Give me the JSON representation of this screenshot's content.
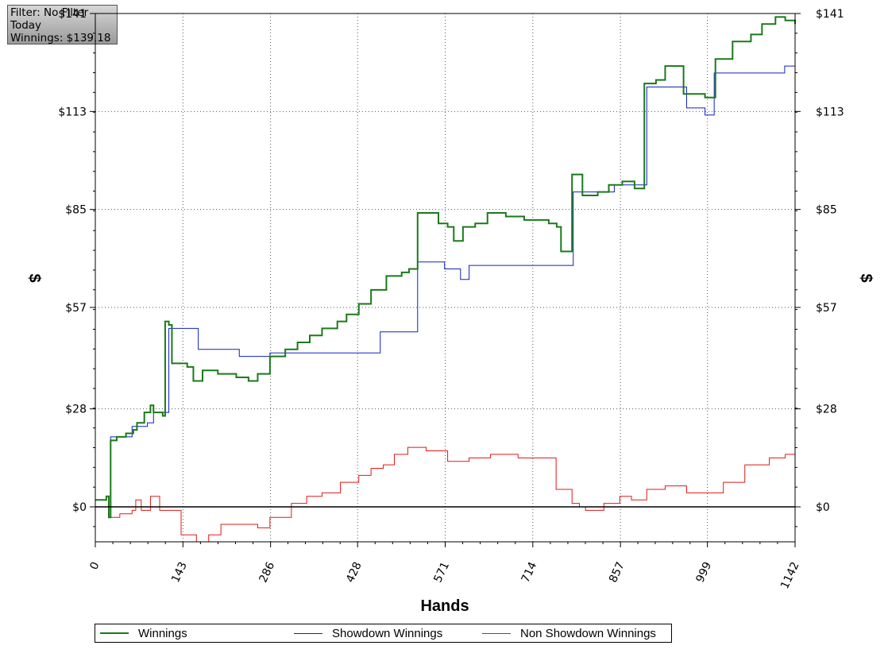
{
  "info_box": {
    "filter": "Filter: No Filter",
    "period": "Today",
    "winnings": "Winnings: $139.18"
  },
  "chart_data": {
    "type": "line",
    "xlabel": "Hands",
    "ylabel_left": "$",
    "ylabel_right": "$",
    "xlim": [
      0,
      1142
    ],
    "ylim": [
      -10,
      141
    ],
    "x_ticks": [
      "0",
      "143",
      "286",
      "428",
      "571",
      "714",
      "857",
      "999",
      "1142"
    ],
    "y_ticks": [
      {
        "value": 0,
        "label": "$0"
      },
      {
        "value": 28,
        "label": "$28"
      },
      {
        "value": 57,
        "label": "$57"
      },
      {
        "value": 85,
        "label": "$85"
      },
      {
        "value": 113,
        "label": "$113"
      },
      {
        "value": 141,
        "label": "$141"
      }
    ],
    "grid": true,
    "legend_position": "bottom",
    "series": [
      {
        "name": "Winnings",
        "color": "#1a7a1a",
        "width": 2,
        "points": [
          [
            0,
            2
          ],
          [
            12,
            2
          ],
          [
            18,
            3
          ],
          [
            22,
            -3
          ],
          [
            25,
            19
          ],
          [
            35,
            20
          ],
          [
            50,
            21
          ],
          [
            62,
            22
          ],
          [
            68,
            24
          ],
          [
            80,
            27
          ],
          [
            90,
            29
          ],
          [
            95,
            27
          ],
          [
            110,
            26
          ],
          [
            114,
            53
          ],
          [
            120,
            52
          ],
          [
            125,
            41
          ],
          [
            150,
            40
          ],
          [
            160,
            36
          ],
          [
            175,
            39
          ],
          [
            200,
            38
          ],
          [
            230,
            37
          ],
          [
            250,
            36
          ],
          [
            265,
            38
          ],
          [
            285,
            43
          ],
          [
            310,
            45
          ],
          [
            330,
            47
          ],
          [
            350,
            49
          ],
          [
            370,
            51
          ],
          [
            395,
            53
          ],
          [
            410,
            55
          ],
          [
            430,
            58
          ],
          [
            450,
            62
          ],
          [
            475,
            66
          ],
          [
            500,
            67
          ],
          [
            512,
            68
          ],
          [
            526,
            84
          ],
          [
            545,
            84
          ],
          [
            560,
            81
          ],
          [
            575,
            80
          ],
          [
            585,
            76
          ],
          [
            600,
            80
          ],
          [
            620,
            81
          ],
          [
            640,
            84
          ],
          [
            670,
            83
          ],
          [
            700,
            82
          ],
          [
            740,
            81
          ],
          [
            753,
            80
          ],
          [
            760,
            73
          ],
          [
            774,
            73
          ],
          [
            778,
            95
          ],
          [
            795,
            89
          ],
          [
            820,
            90
          ],
          [
            838,
            92
          ],
          [
            860,
            93
          ],
          [
            880,
            91
          ],
          [
            896,
            121
          ],
          [
            915,
            122
          ],
          [
            930,
            126
          ],
          [
            960,
            118
          ],
          [
            995,
            117
          ],
          [
            1001,
            117
          ],
          [
            1012,
            128
          ],
          [
            1040,
            133
          ],
          [
            1070,
            135
          ],
          [
            1088,
            138
          ],
          [
            1110,
            140
          ],
          [
            1126,
            139
          ],
          [
            1142,
            138
          ]
        ]
      },
      {
        "name": "Showdown Winnings",
        "color": "#1020c0",
        "width": 1,
        "points": [
          [
            0,
            0
          ],
          [
            25,
            0
          ],
          [
            25,
            20
          ],
          [
            55,
            20
          ],
          [
            60,
            23
          ],
          [
            85,
            24
          ],
          [
            95,
            27
          ],
          [
            110,
            27
          ],
          [
            120,
            51
          ],
          [
            168,
            51
          ],
          [
            168,
            45
          ],
          [
            235,
            45
          ],
          [
            235,
            43
          ],
          [
            285,
            43
          ],
          [
            285,
            44
          ],
          [
            465,
            44
          ],
          [
            465,
            50
          ],
          [
            526,
            50
          ],
          [
            526,
            70
          ],
          [
            570,
            70
          ],
          [
            570,
            68
          ],
          [
            596,
            68
          ],
          [
            596,
            65
          ],
          [
            610,
            65
          ],
          [
            610,
            69
          ],
          [
            780,
            69
          ],
          [
            780,
            90
          ],
          [
            847,
            90
          ],
          [
            847,
            92
          ],
          [
            900,
            92
          ],
          [
            900,
            120
          ],
          [
            965,
            120
          ],
          [
            965,
            114
          ],
          [
            995,
            114
          ],
          [
            995,
            112
          ],
          [
            1010,
            112
          ],
          [
            1010,
            124
          ],
          [
            1125,
            124
          ],
          [
            1125,
            126
          ],
          [
            1142,
            126
          ]
        ]
      },
      {
        "name": "Non Showdown Winnings",
        "color": "#e01818",
        "width": 1,
        "points": [
          [
            0,
            0
          ],
          [
            22,
            -3
          ],
          [
            40,
            -2
          ],
          [
            60,
            -1
          ],
          [
            66,
            2
          ],
          [
            75,
            -1
          ],
          [
            90,
            3
          ],
          [
            105,
            -1
          ],
          [
            132,
            -1
          ],
          [
            140,
            -8
          ],
          [
            165,
            -10
          ],
          [
            185,
            -8
          ],
          [
            205,
            -5
          ],
          [
            235,
            -5
          ],
          [
            265,
            -6
          ],
          [
            285,
            -3
          ],
          [
            320,
            1
          ],
          [
            345,
            3
          ],
          [
            370,
            4
          ],
          [
            400,
            7
          ],
          [
            430,
            9
          ],
          [
            450,
            11
          ],
          [
            470,
            12
          ],
          [
            488,
            15
          ],
          [
            510,
            17
          ],
          [
            540,
            16
          ],
          [
            575,
            13
          ],
          [
            610,
            14
          ],
          [
            645,
            15
          ],
          [
            690,
            14
          ],
          [
            725,
            14
          ],
          [
            748,
            14
          ],
          [
            752,
            5
          ],
          [
            778,
            1
          ],
          [
            790,
            0
          ],
          [
            800,
            -1
          ],
          [
            830,
            1
          ],
          [
            856,
            3
          ],
          [
            875,
            2
          ],
          [
            900,
            5
          ],
          [
            930,
            6
          ],
          [
            965,
            4
          ],
          [
            995,
            4
          ],
          [
            1025,
            7
          ],
          [
            1060,
            12
          ],
          [
            1100,
            14
          ],
          [
            1126,
            15
          ],
          [
            1142,
            12
          ]
        ]
      }
    ]
  }
}
